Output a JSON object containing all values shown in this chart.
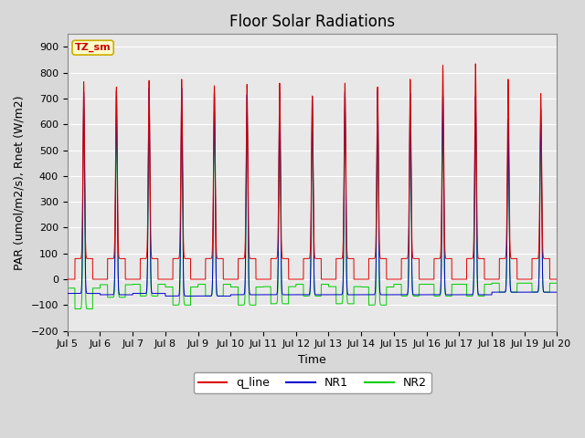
{
  "title": "Floor Solar Radiations",
  "xlabel": "Time",
  "ylabel": "PAR (umol/m2/s), Rnet (W/m2)",
  "ylim": [
    -200,
    950
  ],
  "yticks": [
    -200,
    -100,
    0,
    100,
    200,
    300,
    400,
    500,
    600,
    700,
    800,
    900
  ],
  "xlim_start_day": 5,
  "xlim_end_day": 20,
  "xtick_days": [
    5,
    6,
    7,
    8,
    9,
    10,
    11,
    12,
    13,
    14,
    15,
    16,
    17,
    18,
    19,
    20
  ],
  "xtick_labels": [
    "Jul 5",
    "Jul 6",
    "Jul 7",
    "Jul 8",
    "Jul 9",
    "Jul 10",
    "Jul 11",
    "Jul 12",
    "Jul 13",
    "Jul 14",
    "Jul 15",
    "Jul 16",
    "Jul 17",
    "Jul 18",
    "Jul 19",
    "Jul 20"
  ],
  "color_q_line": "#dd0000",
  "color_NR1": "#0000cc",
  "color_NR2": "#00cc00",
  "background_color": "#d8d8d8",
  "plot_bg_color": "#e8e8e8",
  "grid_color": "#ffffff",
  "label_box_color": "#ffffcc",
  "label_box_edge": "#ccaa00",
  "label_box_text": "TZ_sm",
  "legend_labels": [
    "q_line",
    "NR1",
    "NR2"
  ],
  "title_fontsize": 12,
  "axis_label_fontsize": 9,
  "tick_fontsize": 8,
  "num_days": 15,
  "pts_per_day": 480,
  "day_peak_q": [
    765,
    745,
    770,
    775,
    750,
    755,
    760,
    710,
    760,
    745,
    775,
    830,
    835,
    775,
    720
  ],
  "day_peak_NR1": [
    725,
    730,
    740,
    740,
    725,
    715,
    725,
    710,
    725,
    730,
    720,
    715,
    710,
    620,
    660
  ],
  "day_peak_NR2": [
    665,
    620,
    635,
    630,
    650,
    645,
    645,
    640,
    665,
    660,
    665,
    610,
    600,
    590,
    600
  ],
  "night_NR1": [
    -55,
    -60,
    -55,
    -65,
    -65,
    -60,
    -60,
    -60,
    -60,
    -60,
    -60,
    -60,
    -60,
    -50,
    -50
  ],
  "night_NR2_trough": [
    -115,
    -70,
    -65,
    -100,
    -65,
    -100,
    -95,
    -65,
    -95,
    -100,
    -65,
    -65,
    -65,
    -50,
    -50
  ],
  "q_day_level": 80,
  "q_night_level": 0,
  "dawn_hour": 5.5,
  "dusk_hour": 18.5,
  "spike_sigma": 0.6
}
